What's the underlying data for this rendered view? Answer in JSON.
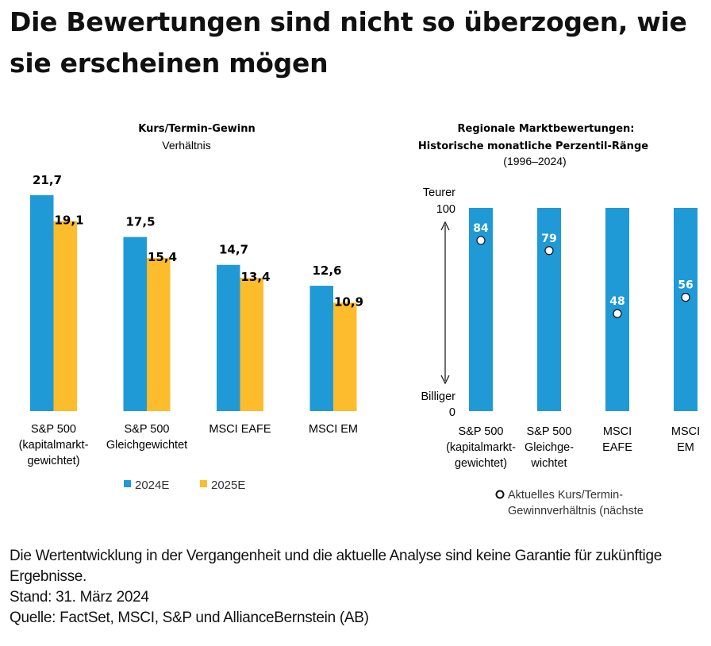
{
  "title": "Die Bewertungen sind nicht so überzogen, wie sie erscheinen mögen",
  "chart_data": [
    {
      "type": "bar",
      "title": "Kurs/Termin-Gewinn",
      "subtitle": "Verhältnis",
      "categories": [
        [
          "S&P 500",
          "(kapitalmarkt-",
          "gewichtet)"
        ],
        [
          "S&P 500",
          "Gleichgewichtet"
        ],
        [
          "MSCI EAFE"
        ],
        [
          "MSCI EM"
        ]
      ],
      "series": [
        {
          "name": "2024E",
          "color": "#1f9ad6",
          "values": [
            21.7,
            17.5,
            14.7,
            12.6
          ],
          "labels": [
            "21,7",
            "17,5",
            "14,7",
            "12,6"
          ]
        },
        {
          "name": "2025E",
          "color": "#fdbc2c",
          "values": [
            19.1,
            15.4,
            13.4,
            10.9
          ],
          "labels": [
            "19,1",
            "15,4",
            "13,4",
            "10,9"
          ]
        }
      ],
      "ylim": [
        0,
        21.7
      ],
      "legend": "bottom"
    },
    {
      "type": "bar",
      "title": "Regionale Marktbewertungen:",
      "title2": "Historische monatliche Perzentil-Ränge",
      "subtitle": "(1996–2024)",
      "y_top_label": "Teurer",
      "y_top_value": "100",
      "y_bottom_label": "Billiger",
      "y_bottom_value": "0",
      "categories": [
        [
          "S&P 500",
          "(kapitalmarkt-",
          "gewichtet)"
        ],
        [
          "S&P 500",
          "Gleichge-",
          "wichtet"
        ],
        [
          "MSCI",
          "EAFE"
        ],
        [
          "MSCI",
          "EM"
        ]
      ],
      "bar_color": "#1f9ad6",
      "ylim": [
        0,
        100
      ],
      "percentiles": [
        84,
        79,
        48,
        56
      ],
      "legend_lines": [
        "Aktuelles Kurs/Termin-",
        "Gewinnverhältnis (nächste"
      ]
    }
  ],
  "footer": {
    "disclaimer": "Die Wertentwicklung in der Vergangenheit und die aktuelle Analyse sind keine Garantie für zukünftige Ergebnisse.",
    "date": "Stand: 31. März 2024",
    "source": "Quelle: FactSet, MSCI, S&P und AllianceBernstein (AB)"
  }
}
